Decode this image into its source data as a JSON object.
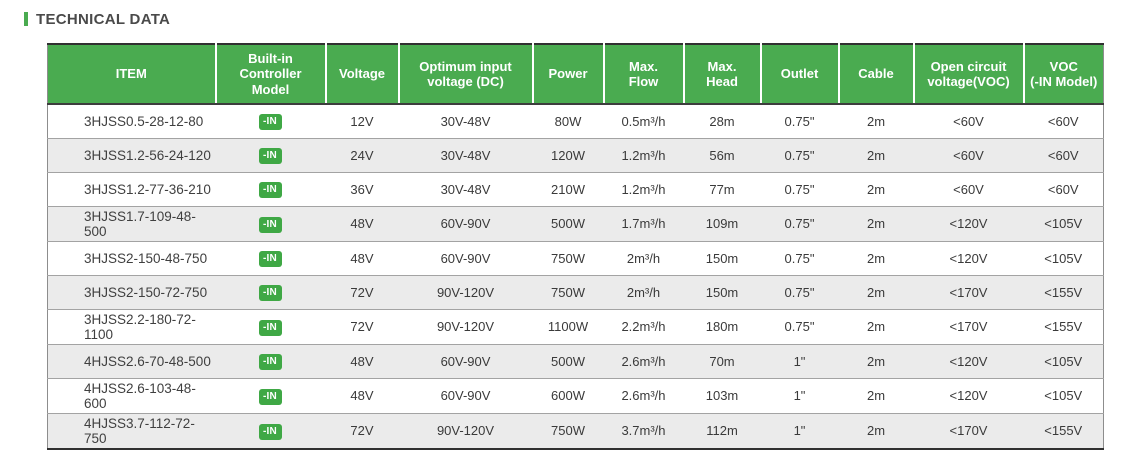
{
  "page": {
    "title": "TECHNICAL DATA"
  },
  "theme": {
    "header_green": "#4aab50",
    "badge_green": "#3fa845",
    "row_alt": "#ebebeb"
  },
  "table": {
    "columns": [
      {
        "key": "item",
        "label": "ITEM"
      },
      {
        "key": "controller",
        "label": "Built-in\nController\nModel"
      },
      {
        "key": "voltage",
        "label": "Voltage"
      },
      {
        "key": "optimum",
        "label": "Optimum input\nvoltage (DC)"
      },
      {
        "key": "power",
        "label": "Power"
      },
      {
        "key": "max_flow",
        "label": "Max.\nFlow"
      },
      {
        "key": "max_head",
        "label": "Max.\nHead"
      },
      {
        "key": "outlet",
        "label": "Outlet"
      },
      {
        "key": "cable",
        "label": "Cable"
      },
      {
        "key": "voc",
        "label": "Open circuit\nvoltage(VOC)"
      },
      {
        "key": "voc_in",
        "label": "VOC\n(-IN Model)"
      }
    ],
    "rows": [
      {
        "item": "3HJSS0.5-28-12-80",
        "controller": "-IN",
        "voltage": "12V",
        "optimum": "30V-48V",
        "power": "80W",
        "max_flow": "0.5m³/h",
        "max_head": "28m",
        "outlet": "0.75\"",
        "cable": "2m",
        "voc": "<60V",
        "voc_in": "<60V"
      },
      {
        "item": "3HJSS1.2-56-24-120",
        "controller": "-IN",
        "voltage": "24V",
        "optimum": "30V-48V",
        "power": "120W",
        "max_flow": "1.2m³/h",
        "max_head": "56m",
        "outlet": "0.75\"",
        "cable": "2m",
        "voc": "<60V",
        "voc_in": "<60V"
      },
      {
        "item": "3HJSS1.2-77-36-210",
        "controller": "-IN",
        "voltage": "36V",
        "optimum": "30V-48V",
        "power": "210W",
        "max_flow": "1.2m³/h",
        "max_head": "77m",
        "outlet": "0.75\"",
        "cable": "2m",
        "voc": "<60V",
        "voc_in": "<60V"
      },
      {
        "item": "3HJSS1.7-109-48-500",
        "controller": "-IN",
        "voltage": "48V",
        "optimum": "60V-90V",
        "power": "500W",
        "max_flow": "1.7m³/h",
        "max_head": "109m",
        "outlet": "0.75\"",
        "cable": "2m",
        "voc": "<120V",
        "voc_in": "<105V"
      },
      {
        "item": "3HJSS2-150-48-750",
        "controller": "-IN",
        "voltage": "48V",
        "optimum": "60V-90V",
        "power": "750W",
        "max_flow": "2m³/h",
        "max_head": "150m",
        "outlet": "0.75\"",
        "cable": "2m",
        "voc": "<120V",
        "voc_in": "<105V"
      },
      {
        "item": "3HJSS2-150-72-750",
        "controller": "-IN",
        "voltage": "72V",
        "optimum": "90V-120V",
        "power": "750W",
        "max_flow": "2m³/h",
        "max_head": "150m",
        "outlet": "0.75\"",
        "cable": "2m",
        "voc": "<170V",
        "voc_in": "<155V"
      },
      {
        "item": "3HJSS2.2-180-72-1100",
        "controller": "-IN",
        "voltage": "72V",
        "optimum": "90V-120V",
        "power": "1100W",
        "max_flow": "2.2m³/h",
        "max_head": "180m",
        "outlet": "0.75\"",
        "cable": "2m",
        "voc": "<170V",
        "voc_in": "<155V"
      },
      {
        "item": "4HJSS2.6-70-48-500",
        "controller": "-IN",
        "voltage": "48V",
        "optimum": "60V-90V",
        "power": "500W",
        "max_flow": "2.6m³/h",
        "max_head": "70m",
        "outlet": "1\"",
        "cable": "2m",
        "voc": "<120V",
        "voc_in": "<105V"
      },
      {
        "item": "4HJSS2.6-103-48-600",
        "controller": "-IN",
        "voltage": "48V",
        "optimum": "60V-90V",
        "power": "600W",
        "max_flow": "2.6m³/h",
        "max_head": "103m",
        "outlet": "1\"",
        "cable": "2m",
        "voc": "<120V",
        "voc_in": "<105V"
      },
      {
        "item": "4HJSS3.7-112-72-750",
        "controller": "-IN",
        "voltage": "72V",
        "optimum": "90V-120V",
        "power": "750W",
        "max_flow": "3.7m³/h",
        "max_head": "112m",
        "outlet": "1\"",
        "cable": "2m",
        "voc": "<170V",
        "voc_in": "<155V"
      }
    ]
  }
}
